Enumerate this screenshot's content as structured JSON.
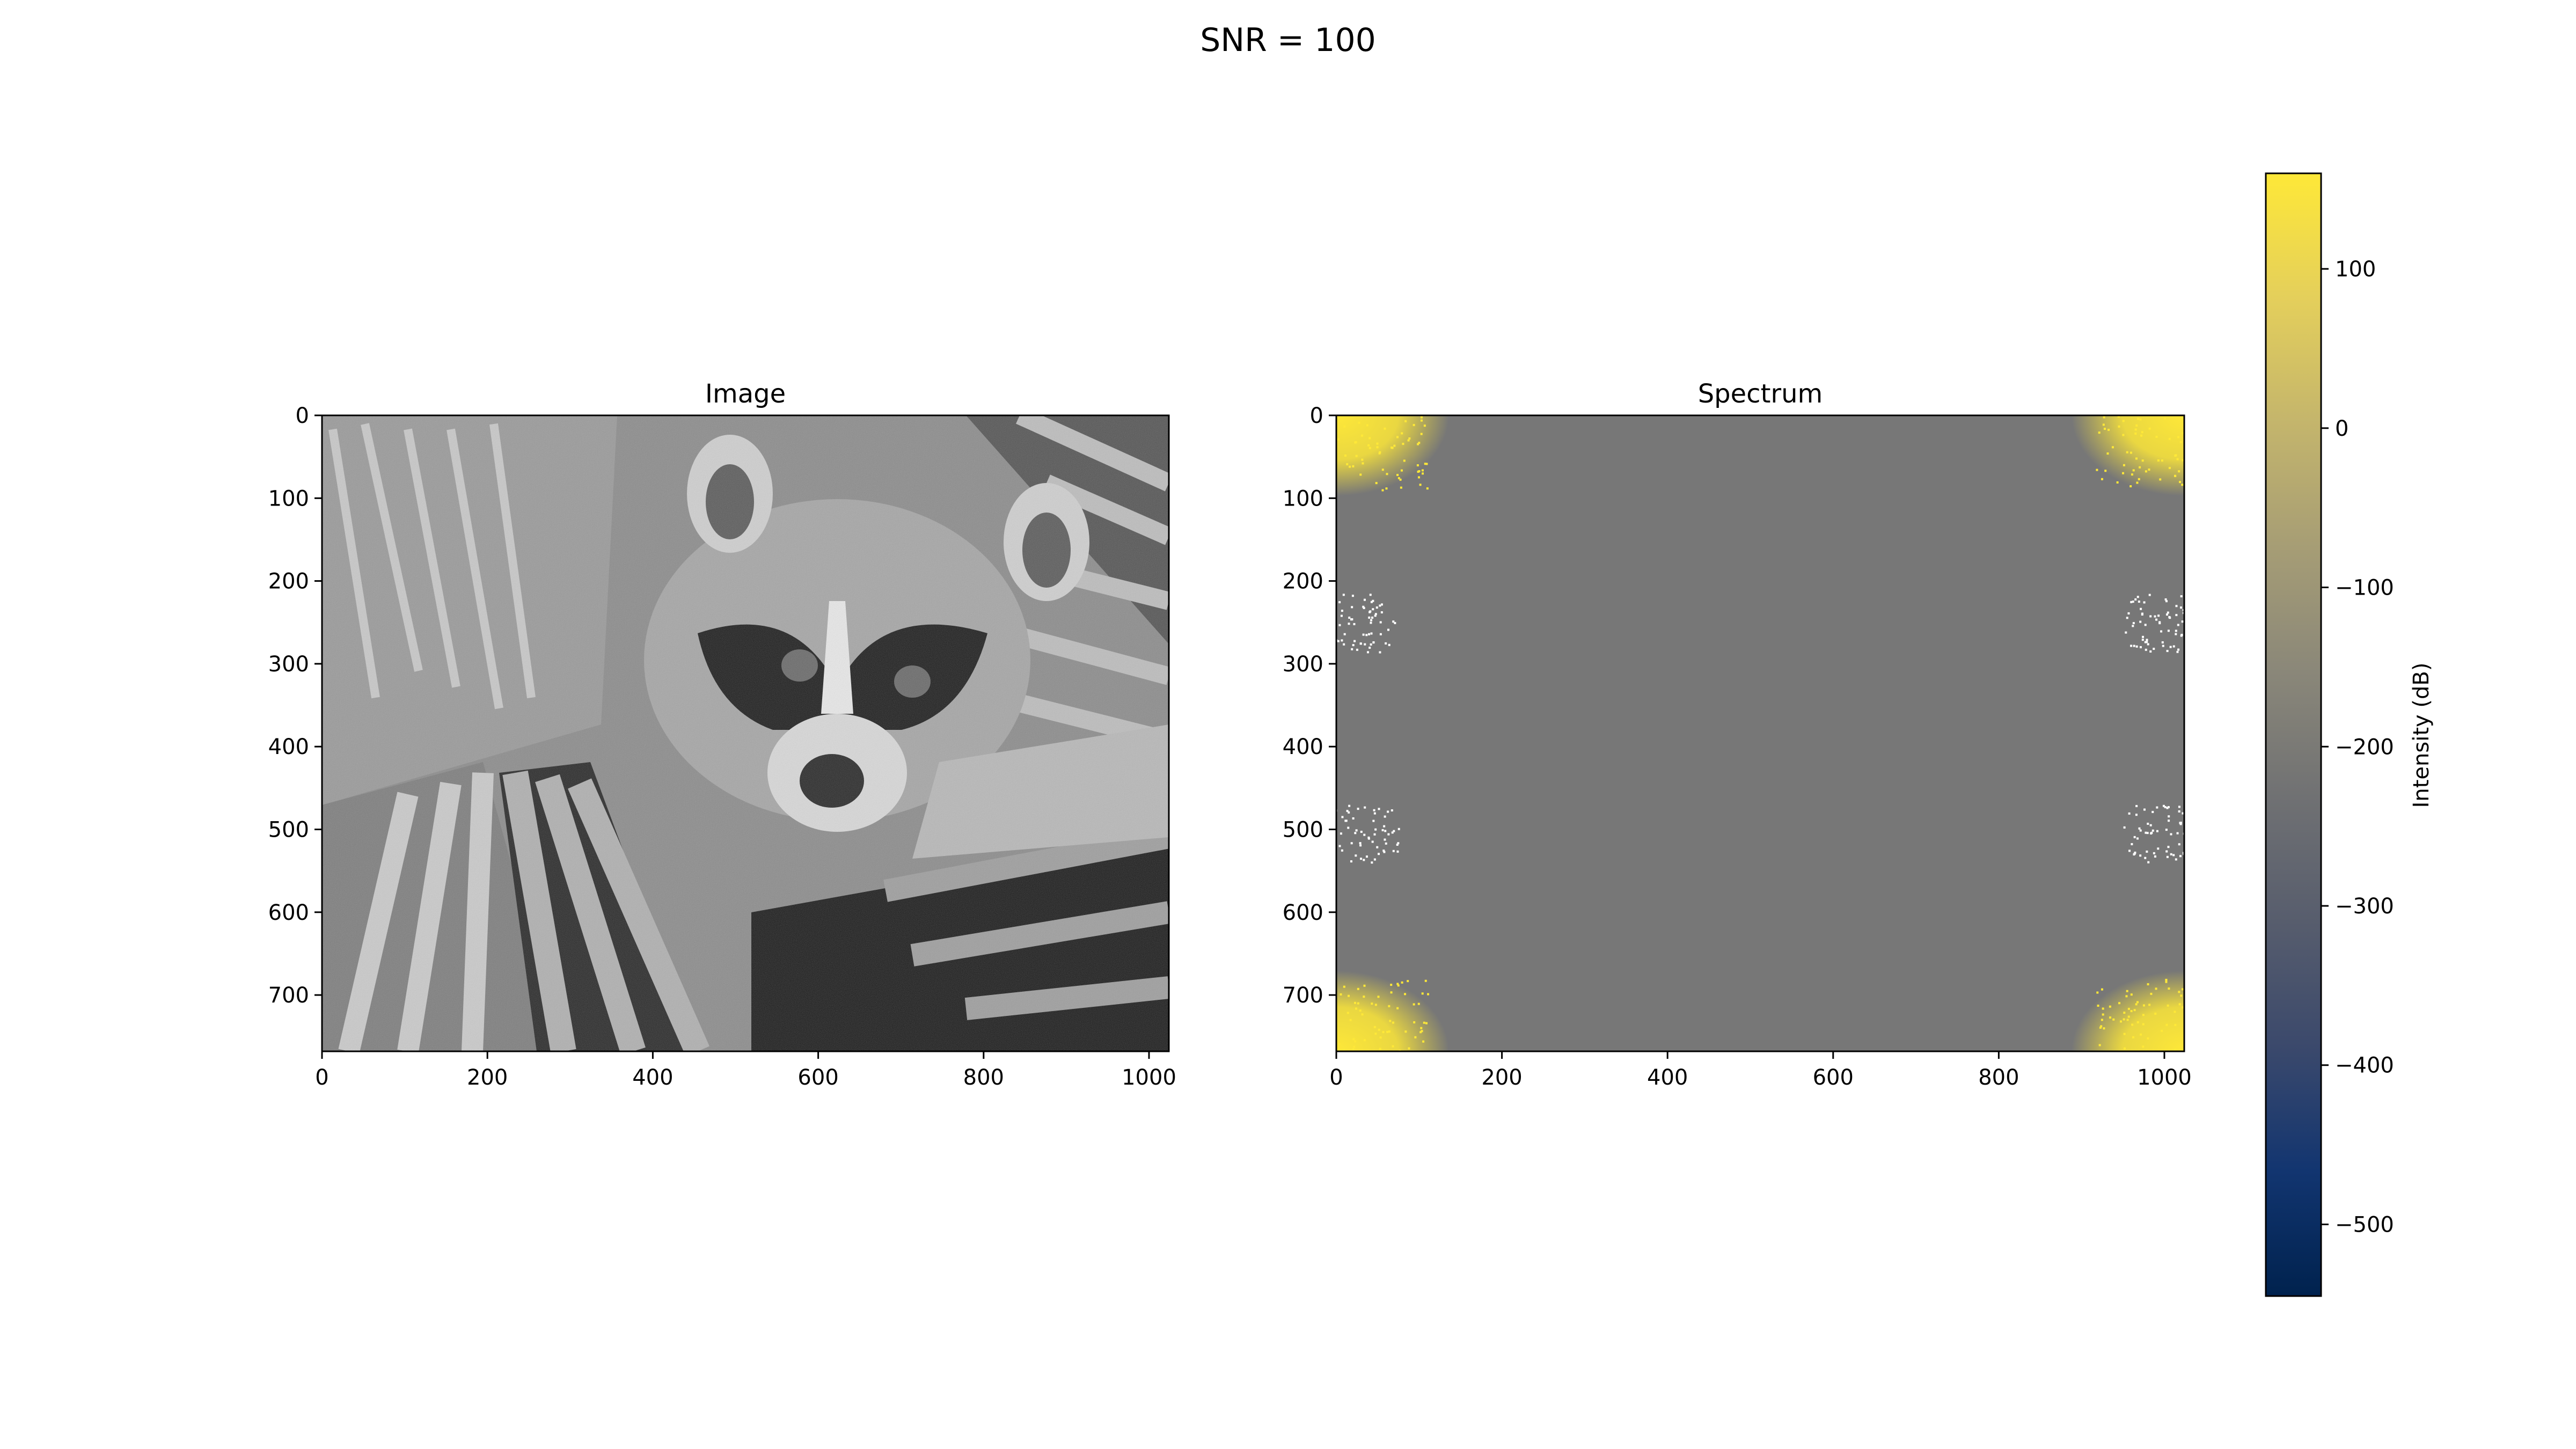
{
  "figure": {
    "title": "SNR = 100"
  },
  "colors": {
    "cividis_stops": [
      "#00224e",
      "#123570",
      "#3b496c",
      "#575d6d",
      "#707173",
      "#8a8779",
      "#a69d75",
      "#c4b56c",
      "#e4cf5b",
      "#fee838"
    ],
    "spectrum_background": "#777777",
    "spectrum_corner": "#fee838",
    "spectrum_speckle": "#ffffff"
  },
  "chart_data": [
    {
      "type": "heatmap",
      "title": "Image",
      "description": "grayscale noisy photo of a raccoon face among palm leaves",
      "xlim": [
        0,
        1024
      ],
      "ylim": [
        768,
        0
      ],
      "xticks": [
        0,
        200,
        400,
        600,
        800,
        1000
      ],
      "yticks": [
        0,
        100,
        200,
        300,
        400,
        500,
        600,
        700
      ],
      "colormap": "gray"
    },
    {
      "type": "heatmap",
      "title": "Spectrum",
      "xlim": [
        0,
        1024
      ],
      "ylim": [
        768,
        0
      ],
      "xticks": [
        0,
        200,
        400,
        600,
        800,
        1000
      ],
      "yticks": [
        0,
        100,
        200,
        300,
        400,
        500,
        600,
        700
      ],
      "colormap": "cividis",
      "background_level_dB": -200,
      "bright_corners_dB": 160,
      "speckle_clusters": [
        {
          "x": 25,
          "y": 250
        },
        {
          "x": 995,
          "y": 250
        },
        {
          "x": 30,
          "y": 505
        },
        {
          "x": 995,
          "y": 505
        }
      ]
    },
    {
      "type": "colorbar",
      "label": "Intensity (dB)",
      "range": [
        -545,
        160
      ],
      "ticks": [
        100,
        0,
        -100,
        -200,
        -300,
        -400,
        -500
      ],
      "tick_labels": [
        "100",
        "0",
        "−100",
        "−200",
        "−300",
        "−400",
        "−500"
      ],
      "colormap": "cividis"
    }
  ]
}
